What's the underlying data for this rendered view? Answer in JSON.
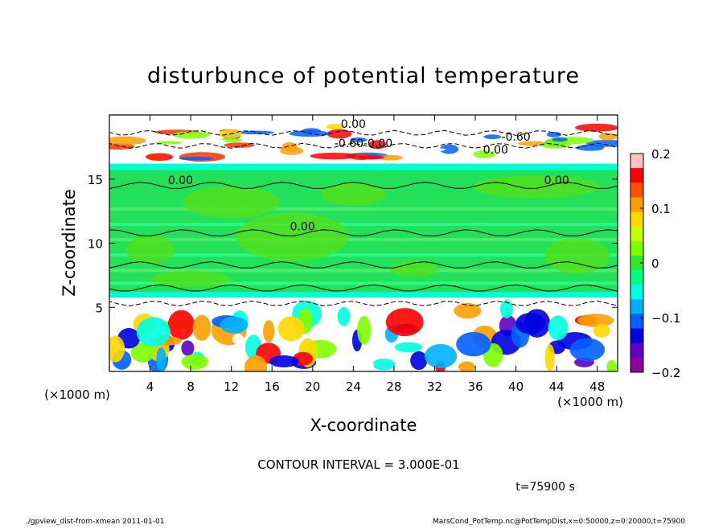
{
  "chart_data": {
    "type": "heatmap",
    "title": "disturbunce of potential temperature",
    "xlabel": "X-coordinate",
    "ylabel": "Z-coordinate",
    "x_unit": "(×1000 m)",
    "y_unit": "(×1000 m)",
    "xlim": [
      0,
      50
    ],
    "ylim": [
      0,
      20
    ],
    "x_ticks": [
      4,
      8,
      12,
      16,
      20,
      24,
      28,
      32,
      36,
      40,
      44,
      48
    ],
    "y_ticks": [
      5,
      10,
      15
    ],
    "colorbar": {
      "range": [
        -0.2,
        0.2
      ],
      "tick_values": [
        0.2,
        0.1,
        0,
        -0.1,
        -0.2
      ],
      "tick_labels": [
        "0.2",
        "0.1",
        "0",
        "−0.1",
        "−0.2"
      ],
      "colors": [
        "#ffc0c0",
        "#ff0000",
        "#ff5000",
        "#ffa000",
        "#ffd800",
        "#c8ff00",
        "#80ff00",
        "#30e830",
        "#00ff80",
        "#00ffe0",
        "#00b0ff",
        "#0060ff",
        "#0000e0",
        "#6000c0",
        "#9000a0"
      ]
    },
    "contour_labels": [
      {
        "text": "0.00",
        "x": 7.0,
        "z": 14.6
      },
      {
        "text": "0.00",
        "x": 44.0,
        "z": 14.6
      },
      {
        "text": "0.00",
        "x": 19.0,
        "z": 11.0
      },
      {
        "text": "0.00",
        "x": 24.0,
        "z": 19.0
      },
      {
        "text": "-0.60",
        "x": 40.0,
        "z": 18.0
      },
      {
        "text": "0.00",
        "x": 38.0,
        "z": 17.0
      },
      {
        "text": "-0.60-0.00",
        "x": 25.0,
        "z": 17.5
      }
    ],
    "contour_interval_text": "CONTOUR INTERVAL = 3.000E-01"
  },
  "annotations": {
    "time_label": "t=75900 s",
    "footer_left": "./gpview_dist-from-xmean 2011-01-01",
    "footer_right": "MarsCond_PotTemp.nc@PotTempDist,x=0:50000,z=0:20000,t=75900"
  }
}
